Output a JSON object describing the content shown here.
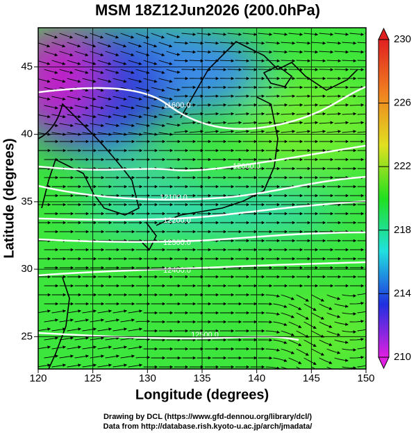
{
  "chart_data": {
    "type": "streamline",
    "title": "MSM 18Z12Jun2026 (200.0hPa)",
    "x_label": "Longitude (degrees)",
    "y_label": "Latitude  (degrees)",
    "xlim": [
      120,
      150
    ],
    "xticks": [
      120,
      125,
      130,
      135,
      140,
      145,
      150
    ],
    "ylim": [
      22.6,
      47.9
    ],
    "yticks": [
      25,
      30,
      35,
      40,
      45
    ],
    "colorbar": {
      "lim": [
        210,
        230
      ],
      "ticks": [
        210,
        214,
        218,
        222,
        226,
        230
      ],
      "colors": [
        "#e020e0",
        "#2030e0",
        "#20e0e0",
        "#20e020",
        "#e0e020",
        "#f08020",
        "#e02020"
      ]
    },
    "contours": [
      {
        "value": 11600,
        "label": "11600.0"
      },
      {
        "value": 12000,
        "label": "12000.0"
      },
      {
        "value": 12100,
        "label": "12100.0"
      },
      {
        "value": 12200,
        "label": "12200.0"
      },
      {
        "value": 12300,
        "label": "12300.0"
      },
      {
        "value": 12400,
        "label": "12400.0"
      },
      {
        "value": 12500,
        "label": "12500.0"
      }
    ],
    "credits": [
      "Drawing by DCL (https://www.gfd-dennou.org/library/dcl/)",
      "Data from http://database.rish.kyoto-u.ac.jp/arch/jmadata/"
    ]
  }
}
